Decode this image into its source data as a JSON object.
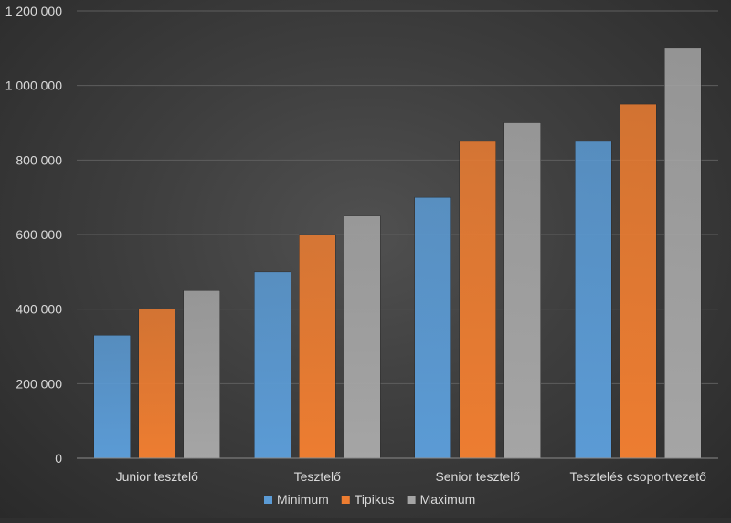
{
  "chart_data": {
    "type": "bar",
    "title": "",
    "xlabel": "",
    "ylabel": "",
    "categories": [
      "Junior tesztelő",
      "Tesztelő",
      "Senior tesztelő",
      "Tesztelés csoportvezető"
    ],
    "series": [
      {
        "name": "Minimum",
        "values": [
          330000,
          500000,
          700000,
          850000
        ],
        "color": "#5b9bd5"
      },
      {
        "name": "Tipikus",
        "values": [
          400000,
          600000,
          850000,
          950000
        ],
        "color": "#ed7d31"
      },
      {
        "name": "Maximum",
        "values": [
          450000,
          650000,
          900000,
          1100000
        ],
        "color": "#a5a5a5"
      }
    ],
    "ylim": [
      0,
      1200000
    ],
    "yticks": [
      0,
      200000,
      400000,
      600000,
      800000,
      1000000,
      1200000
    ],
    "ytick_labels": [
      "0",
      "200 000",
      "400 000",
      "600 000",
      "800 000",
      "1 000 000",
      "1 200 000"
    ],
    "grid": true,
    "legend_position": "bottom"
  }
}
